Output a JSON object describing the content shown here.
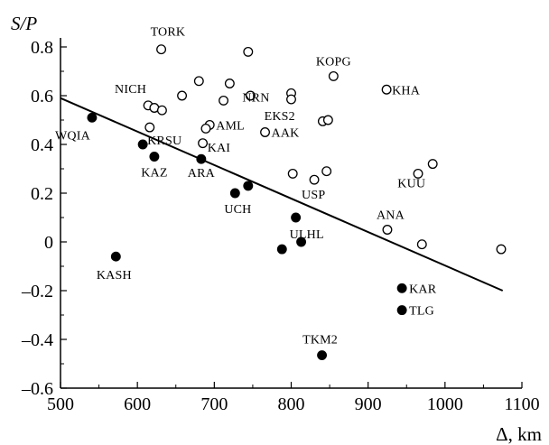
{
  "chart_data": {
    "type": "scatter",
    "ylabel": "S/P",
    "xlabel": "Δ, km",
    "xlim": [
      500,
      1100
    ],
    "ylim": [
      -0.6,
      0.8
    ],
    "xticks": [
      500,
      600,
      700,
      800,
      900,
      1000,
      1100
    ],
    "yticks": [
      0.8,
      0.6,
      0.4,
      0.2,
      0,
      -0.2,
      -0.4,
      -0.6
    ],
    "ytick_labels": [
      "0.8",
      "0.6",
      "0.4",
      "0.2",
      "0",
      "–0.2",
      "–0.4",
      "–0.6"
    ],
    "grid": false,
    "legend": false,
    "series": [
      {
        "marker": "open-circle",
        "color": "#000000",
        "points": [
          {
            "x": 631,
            "y": 0.79,
            "label": "TORK"
          },
          {
            "x": 744,
            "y": 0.78,
            "label": ""
          },
          {
            "x": 680,
            "y": 0.66,
            "label": ""
          },
          {
            "x": 720,
            "y": 0.65,
            "label": "NRN"
          },
          {
            "x": 658,
            "y": 0.6,
            "label": ""
          },
          {
            "x": 747,
            "y": 0.6,
            "label": ""
          },
          {
            "x": 800,
            "y": 0.61,
            "label": ""
          },
          {
            "x": 800,
            "y": 0.585,
            "label": ""
          },
          {
            "x": 712,
            "y": 0.58,
            "label": ""
          },
          {
            "x": 855,
            "y": 0.68,
            "label": "KOPG"
          },
          {
            "x": 924,
            "y": 0.625,
            "label": "KHA"
          },
          {
            "x": 614,
            "y": 0.56,
            "label": "NICH"
          },
          {
            "x": 622,
            "y": 0.55,
            "label": ""
          },
          {
            "x": 632,
            "y": 0.54,
            "label": ""
          },
          {
            "x": 841,
            "y": 0.495,
            "label": ""
          },
          {
            "x": 848,
            "y": 0.5,
            "label": ""
          },
          {
            "x": 616,
            "y": 0.47,
            "label": ""
          },
          {
            "x": 694,
            "y": 0.48,
            "label": "AML"
          },
          {
            "x": 689,
            "y": 0.465,
            "label": ""
          },
          {
            "x": 766,
            "y": 0.45,
            "label": "AAK"
          },
          {
            "x": 685,
            "y": 0.405,
            "label": ""
          },
          {
            "x": 802,
            "y": 0.28,
            "label": ""
          },
          {
            "x": 830,
            "y": 0.255,
            "label": "USP"
          },
          {
            "x": 846,
            "y": 0.29,
            "label": ""
          },
          {
            "x": 965,
            "y": 0.28,
            "label": ""
          },
          {
            "x": 984,
            "y": 0.32,
            "label": "KUU"
          },
          {
            "x": 925,
            "y": 0.05,
            "label": "ANA"
          },
          {
            "x": 970,
            "y": -0.01,
            "label": ""
          },
          {
            "x": 1073,
            "y": -0.03,
            "label": ""
          }
        ]
      },
      {
        "marker": "filled-circle",
        "color": "#000000",
        "points": [
          {
            "x": 541,
            "y": 0.51,
            "label": "WQIA"
          },
          {
            "x": 607,
            "y": 0.4,
            "label": "KRSU"
          },
          {
            "x": 622,
            "y": 0.35,
            "label": "KAZ"
          },
          {
            "x": 683,
            "y": 0.34,
            "label": "ARA"
          },
          {
            "x": 727,
            "y": 0.2,
            "label": "UCH"
          },
          {
            "x": 744,
            "y": 0.23,
            "label": ""
          },
          {
            "x": 806,
            "y": 0.1,
            "label": "ULHL"
          },
          {
            "x": 788,
            "y": -0.03,
            "label": ""
          },
          {
            "x": 813,
            "y": 0.0,
            "label": ""
          },
          {
            "x": 572,
            "y": -0.06,
            "label": "KASH"
          },
          {
            "x": 944,
            "y": -0.19,
            "label": "KAR"
          },
          {
            "x": 944,
            "y": -0.28,
            "label": "TLG"
          },
          {
            "x": 840,
            "y": -0.465,
            "label": "TKM2"
          }
        ]
      }
    ],
    "unattached_labels": [
      "EKS2",
      "KAI"
    ],
    "regression_line": {
      "x": [
        500,
        1075
      ],
      "y": [
        0.59,
        -0.2
      ]
    }
  }
}
